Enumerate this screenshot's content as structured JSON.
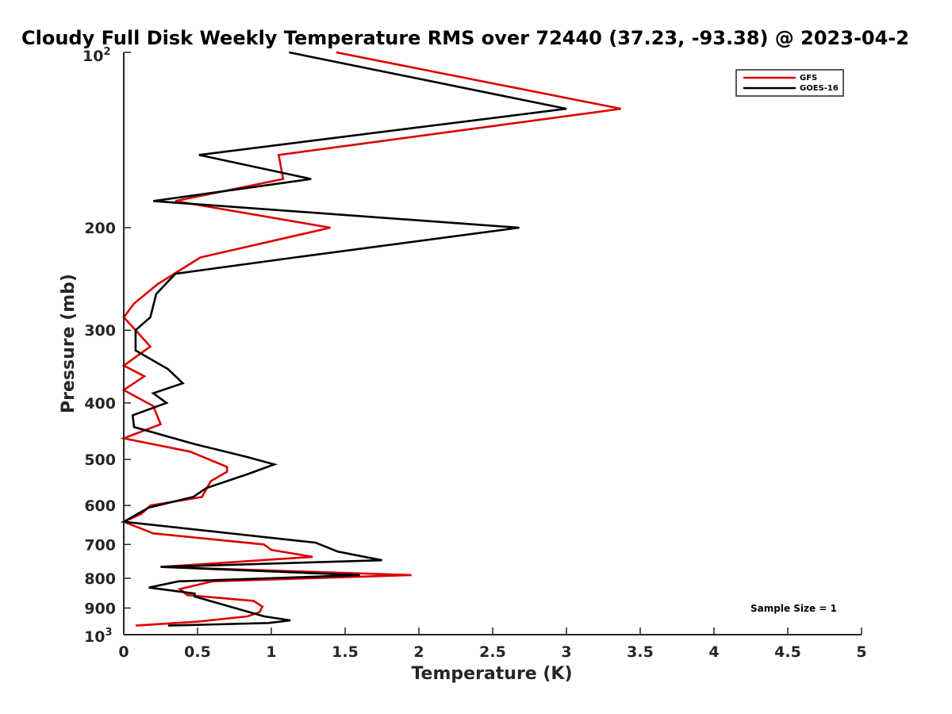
{
  "chart_data": {
    "type": "line",
    "title": "Cloudy Full Disk Weekly Temperature RMS over 72440 (37.23, -93.38) @ 2023-04-2",
    "xlabel": "Temperature (K)",
    "ylabel": "Pressure (mb)",
    "xlim": [
      0,
      5
    ],
    "ylim": [
      100,
      1000
    ],
    "y_scale": "log",
    "y_reversed": true,
    "grid": false,
    "legend_position": "top-right",
    "x_ticks": [
      "0",
      "0.5",
      "1",
      "1.5",
      "2",
      "2.5",
      "3",
      "3.5",
      "4",
      "4.5",
      "5"
    ],
    "y_tick_labels": [
      "200",
      "300",
      "400",
      "500",
      "600",
      "700",
      "800",
      "900"
    ],
    "y_tick_values": [
      200,
      300,
      400,
      500,
      600,
      700,
      800,
      900
    ],
    "y_exp_labels": {
      "top": {
        "base": "10",
        "exp": "2"
      },
      "bottom": {
        "base": "10",
        "exp": "3"
      }
    },
    "annotation": "Sample Size = 1",
    "series": [
      {
        "name": "GFS",
        "color": "#dd0000",
        "points": [
          [
            1.44,
            100
          ],
          [
            3.37,
            125
          ],
          [
            1.05,
            150
          ],
          [
            1.08,
            165
          ],
          [
            0.35,
            180
          ],
          [
            1.4,
            200
          ],
          [
            0.52,
            225
          ],
          [
            0.23,
            250
          ],
          [
            0.07,
            270
          ],
          [
            0.0,
            285
          ],
          [
            0.08,
            300
          ],
          [
            0.18,
            320
          ],
          [
            0.0,
            345
          ],
          [
            0.14,
            360
          ],
          [
            0.0,
            380
          ],
          [
            0.2,
            405
          ],
          [
            0.25,
            435
          ],
          [
            0.0,
            460
          ],
          [
            0.45,
            485
          ],
          [
            0.7,
            515
          ],
          [
            0.7,
            525
          ],
          [
            0.59,
            545
          ],
          [
            0.53,
            580
          ],
          [
            0.18,
            600
          ],
          [
            0.12,
            620
          ],
          [
            0.0,
            640
          ],
          [
            0.2,
            670
          ],
          [
            0.95,
            700
          ],
          [
            1.0,
            715
          ],
          [
            1.28,
            735
          ],
          [
            0.25,
            765
          ],
          [
            1.95,
            790
          ],
          [
            0.6,
            810
          ],
          [
            0.38,
            835
          ],
          [
            0.43,
            855
          ],
          [
            0.88,
            875
          ],
          [
            0.94,
            895
          ],
          [
            0.92,
            915
          ],
          [
            0.84,
            930
          ],
          [
            0.5,
            950
          ],
          [
            0.08,
            965
          ]
        ]
      },
      {
        "name": "GOES-16",
        "color": "#000000",
        "points": [
          [
            1.12,
            100
          ],
          [
            3.0,
            125
          ],
          [
            0.51,
            150
          ],
          [
            1.27,
            165
          ],
          [
            0.2,
            180
          ],
          [
            2.68,
            200
          ],
          [
            1.16,
            225
          ],
          [
            0.35,
            240
          ],
          [
            0.22,
            260
          ],
          [
            0.18,
            285
          ],
          [
            0.08,
            300
          ],
          [
            0.08,
            325
          ],
          [
            0.3,
            350
          ],
          [
            0.4,
            370
          ],
          [
            0.2,
            385
          ],
          [
            0.29,
            400
          ],
          [
            0.06,
            420
          ],
          [
            0.07,
            440
          ],
          [
            0.47,
            470
          ],
          [
            0.83,
            495
          ],
          [
            1.02,
            510
          ],
          [
            0.84,
            530
          ],
          [
            0.56,
            560
          ],
          [
            0.47,
            580
          ],
          [
            0.17,
            605
          ],
          [
            0.07,
            625
          ],
          [
            0.0,
            640
          ],
          [
            1.3,
            695
          ],
          [
            1.45,
            720
          ],
          [
            1.75,
            745
          ],
          [
            0.25,
            765
          ],
          [
            1.6,
            790
          ],
          [
            0.37,
            810
          ],
          [
            0.17,
            830
          ],
          [
            0.48,
            850
          ],
          [
            0.48,
            860
          ],
          [
            0.95,
            930
          ],
          [
            1.13,
            945
          ],
          [
            0.98,
            955
          ],
          [
            0.3,
            965
          ]
        ]
      }
    ]
  }
}
